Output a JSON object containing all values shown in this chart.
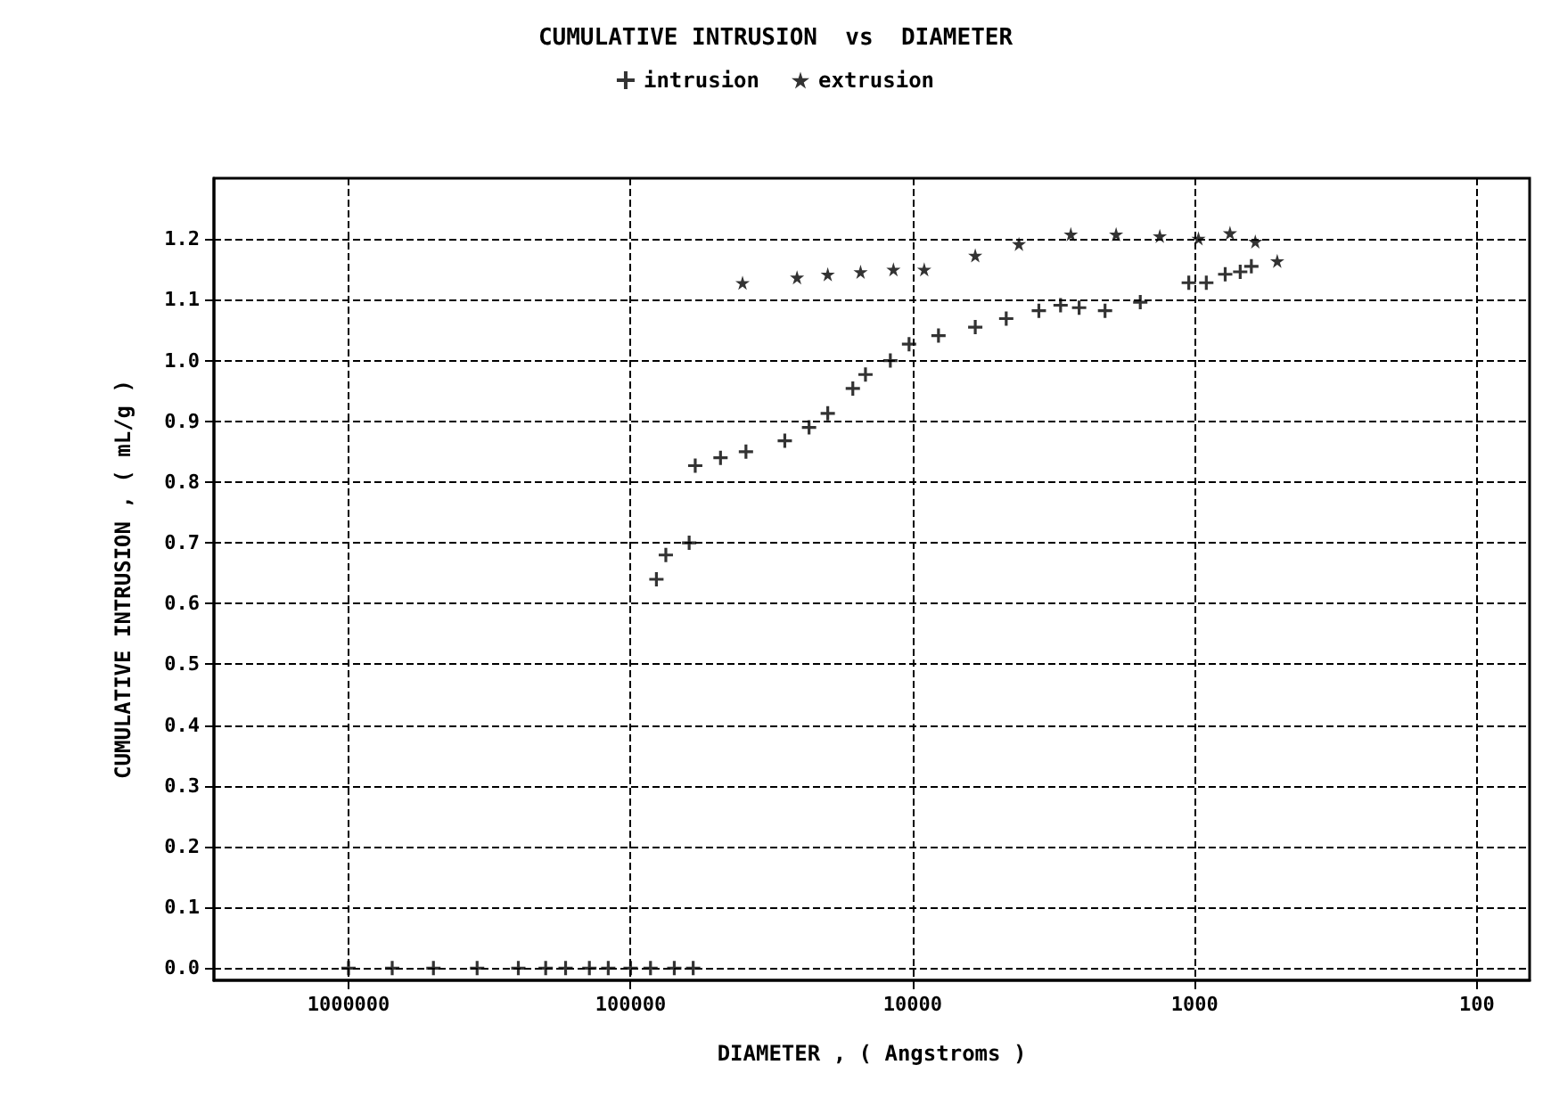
{
  "chart_data": {
    "type": "scatter",
    "title": "CUMULATIVE INTRUSION  vs  DIAMETER",
    "xlabel": "DIAMETER , ( Angstroms )",
    "ylabel": "CUMULATIVE INTRUSION , ( mL/g )",
    "log": "x",
    "xlim": [
      3000000,
      65
    ],
    "xticks": [
      1000000,
      100000,
      10000,
      1000,
      100
    ],
    "ylim": [
      -0.02,
      1.3
    ],
    "yticks": [
      {
        "value": 0,
        "label": "0.0"
      },
      {
        "value": 0.1,
        "label": "0.1"
      },
      {
        "value": 0.2,
        "label": "0.2"
      },
      {
        "value": 0.3,
        "label": "0.3"
      },
      {
        "value": 0.4,
        "label": "0.4"
      },
      {
        "value": 0.5,
        "label": "0.5"
      },
      {
        "value": 0.6,
        "label": "0.6"
      },
      {
        "value": 0.7,
        "label": "0.7"
      },
      {
        "value": 0.8,
        "label": "0.8"
      },
      {
        "value": 0.9,
        "label": "0.9"
      },
      {
        "value": 1.0,
        "label": "1.0"
      },
      {
        "value": 1.1,
        "label": "1.1"
      },
      {
        "value": 1.2,
        "label": "1.2"
      }
    ],
    "grid": true,
    "legend": "top",
    "series": [
      {
        "name": "intrusion",
        "color": "#000000",
        "marker": "cross",
        "x": [
          1000000,
          700000,
          500000,
          350000,
          250000,
          200000,
          170000,
          140000,
          120000,
          100000,
          85000,
          70000,
          60000,
          81000,
          75000,
          62000,
          59000,
          48000,
          39000,
          28400,
          23300,
          20000,
          16300,
          14700,
          12000,
          10300,
          8100,
          6000,
          4660,
          3570,
          2990,
          2570,
          2080,
          1560,
          1050,
          910,
          780,
          690,
          630
        ],
        "values": [
          0,
          0,
          0,
          0,
          0,
          0,
          0,
          0,
          0,
          0,
          0,
          0,
          0,
          0.64,
          0.68,
          0.7,
          0.827,
          0.84,
          0.85,
          0.868,
          0.89,
          0.913,
          0.954,
          0.977,
          1.0,
          1.027,
          1.041,
          1.055,
          1.069,
          1.082,
          1.091,
          1.087,
          1.082,
          1.096,
          1.128,
          1.128,
          1.142,
          1.146,
          1.155
        ]
      },
      {
        "name": "extrusion",
        "color": "#000000",
        "marker": "star",
        "x": [
          510,
          610,
          750,
          970,
          1330,
          1900,
          2750,
          4200,
          6000,
          9100,
          11700,
          15300,
          20000,
          25700,
          40100
        ],
        "values": [
          1.164,
          1.196,
          1.21,
          1.201,
          1.205,
          1.208,
          1.208,
          1.192,
          1.173,
          1.15,
          1.15,
          1.146,
          1.142,
          1.137,
          1.128
        ]
      }
    ]
  }
}
